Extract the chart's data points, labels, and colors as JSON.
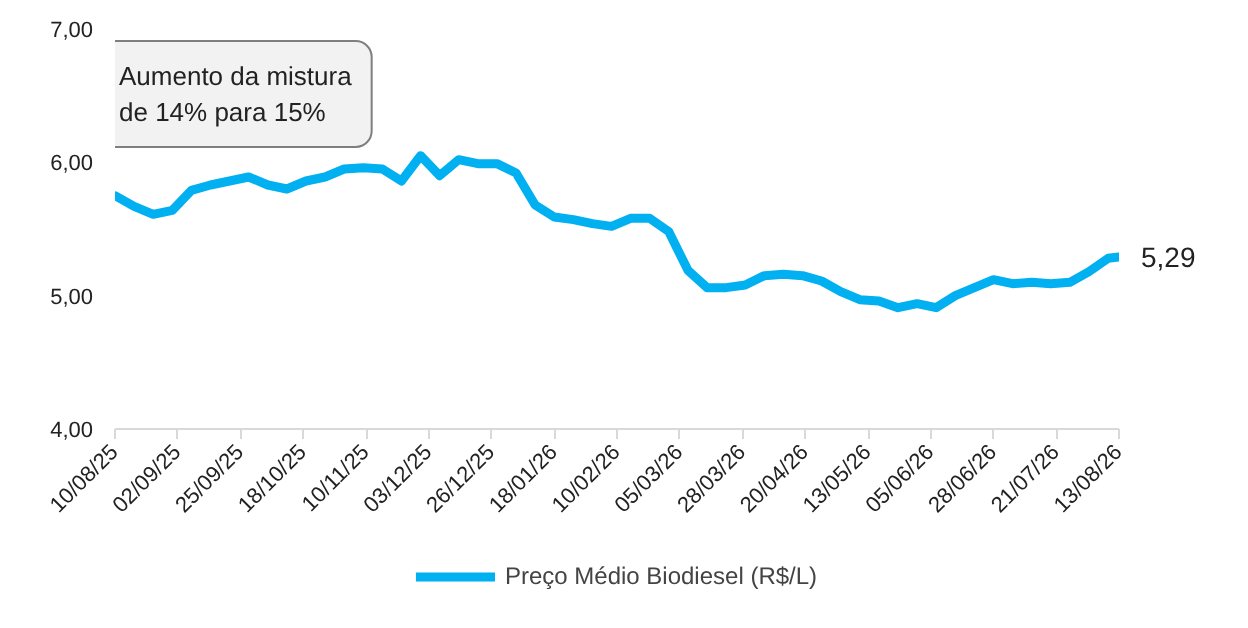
{
  "chart_data": {
    "type": "line",
    "x": [
      "2025-08-10",
      "2025-08-17",
      "2025-08-24",
      "2025-08-31",
      "2025-09-07",
      "2025-09-14",
      "2025-09-21",
      "2025-09-28",
      "2025-10-05",
      "2025-10-12",
      "2025-10-19",
      "2025-10-26",
      "2025-11-02",
      "2025-11-09",
      "2025-11-16",
      "2025-11-23",
      "2025-11-30",
      "2025-12-07",
      "2025-12-14",
      "2025-12-21",
      "2025-12-28",
      "2026-01-04",
      "2026-01-11",
      "2026-01-18",
      "2026-01-25",
      "2026-02-01",
      "2026-02-08",
      "2026-02-15",
      "2026-02-22",
      "2026-03-01",
      "2026-03-08",
      "2026-03-15",
      "2026-03-22",
      "2026-03-29",
      "2026-04-05",
      "2026-04-12",
      "2026-04-19",
      "2026-04-26",
      "2026-05-03",
      "2026-05-10",
      "2026-05-17",
      "2026-05-24",
      "2026-05-31",
      "2026-06-07",
      "2026-06-14",
      "2026-06-21",
      "2026-06-28",
      "2026-07-05",
      "2026-07-12",
      "2026-07-19",
      "2026-07-26",
      "2026-08-02",
      "2026-08-09",
      "2026-08-13"
    ],
    "series": [
      {
        "name": "Preço Médio Biodiesel (R$/L)",
        "color": "#00b0f0",
        "values": [
          5.75,
          5.67,
          5.61,
          5.64,
          5.79,
          5.83,
          5.86,
          5.89,
          5.83,
          5.8,
          5.86,
          5.89,
          5.95,
          5.96,
          5.95,
          5.86,
          6.05,
          5.9,
          6.02,
          5.99,
          5.99,
          5.92,
          5.68,
          5.59,
          5.57,
          5.54,
          5.52,
          5.58,
          5.58,
          5.48,
          5.19,
          5.06,
          5.06,
          5.08,
          5.15,
          5.16,
          5.15,
          5.11,
          5.03,
          4.97,
          4.96,
          4.91,
          4.94,
          4.91,
          5.0,
          5.06,
          5.12,
          5.09,
          5.1,
          5.09,
          5.1,
          5.18,
          5.28,
          5.29
        ]
      }
    ],
    "xlim": [
      "2025-08-10",
      "2026-08-13"
    ],
    "xticks": [
      {
        "value": "2025-08-10",
        "label": "10/08/25"
      },
      {
        "value": "2025-09-02",
        "label": "02/09/25"
      },
      {
        "value": "2025-09-25",
        "label": "25/09/25"
      },
      {
        "value": "2025-10-18",
        "label": "18/10/25"
      },
      {
        "value": "2025-11-10",
        "label": "10/11/25"
      },
      {
        "value": "2025-12-03",
        "label": "03/12/25"
      },
      {
        "value": "2025-12-26",
        "label": "26/12/25"
      },
      {
        "value": "2026-01-18",
        "label": "18/01/26"
      },
      {
        "value": "2026-02-10",
        "label": "10/02/26"
      },
      {
        "value": "2026-03-05",
        "label": "05/03/26"
      },
      {
        "value": "2026-03-28",
        "label": "28/03/26"
      },
      {
        "value": "2026-04-20",
        "label": "20/04/26"
      },
      {
        "value": "2026-05-13",
        "label": "13/05/26"
      },
      {
        "value": "2026-06-05",
        "label": "05/06/26"
      },
      {
        "value": "2026-06-28",
        "label": "28/06/26"
      },
      {
        "value": "2026-07-21",
        "label": "21/07/26"
      },
      {
        "value": "2026-08-13",
        "label": "13/08/26"
      }
    ],
    "ylim": [
      4,
      7
    ],
    "yticks": [
      {
        "value": 4,
        "label": "4,00"
      },
      {
        "value": 5,
        "label": "5,00"
      },
      {
        "value": 6,
        "label": "6,00"
      },
      {
        "value": 7,
        "label": "7,00"
      }
    ],
    "annotations": [
      "Aumento da mistura\nde 14% para 15%",
      {
        "text": "5,29",
        "x": "2026-08-13",
        "y": 5.29
      }
    ],
    "legend": "bottom",
    "line_style": "solid"
  }
}
